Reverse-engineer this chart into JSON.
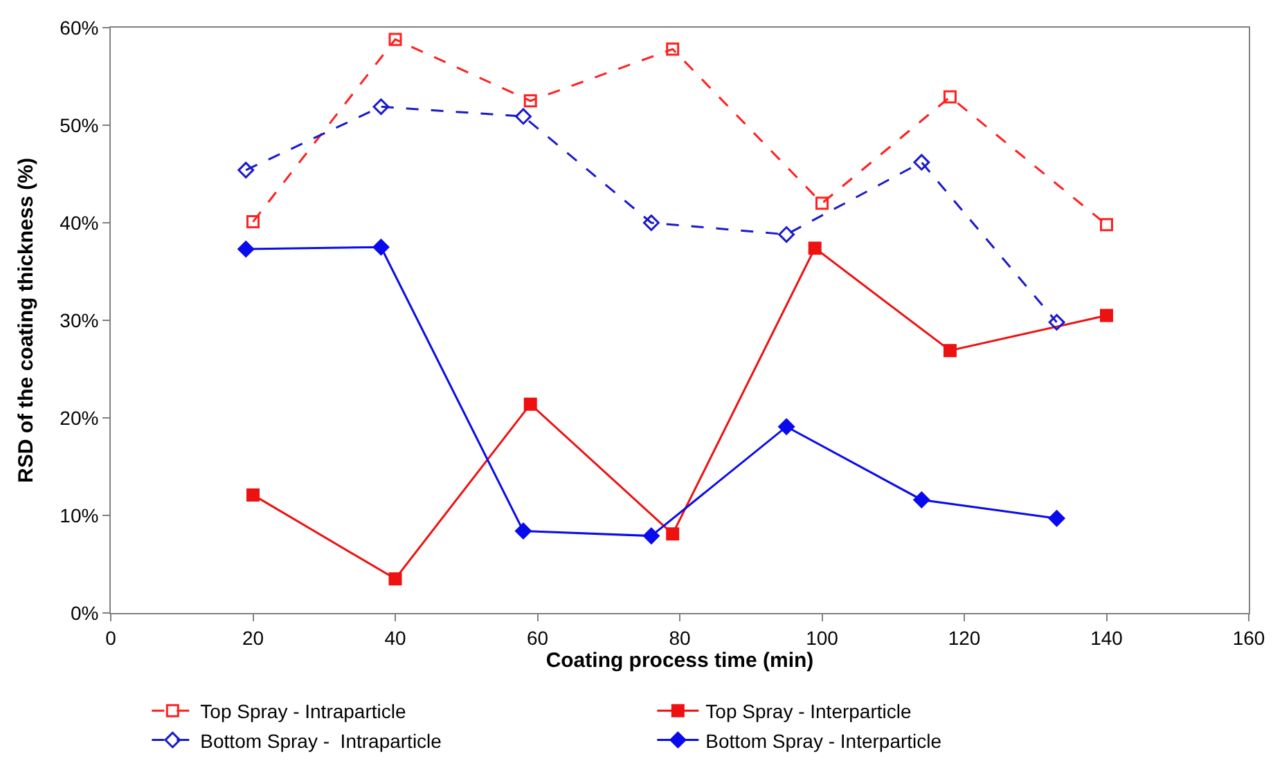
{
  "chart_data": {
    "type": "line",
    "xlabel": "Coating process time (min)",
    "ylabel": "RSD of the coating thickness (%)",
    "xlim": [
      0,
      160
    ],
    "xticks": [
      0,
      20,
      40,
      60,
      80,
      100,
      120,
      140,
      160
    ],
    "ylim": [
      0,
      60
    ],
    "yticks": [
      {
        "value": 0,
        "label": "0%"
      },
      {
        "value": 10,
        "label": "10%"
      },
      {
        "value": 20,
        "label": "20%"
      },
      {
        "value": 30,
        "label": "30%"
      },
      {
        "value": 40,
        "label": "40%"
      },
      {
        "value": 50,
        "label": "50%"
      },
      {
        "value": 60,
        "label": "60%"
      }
    ],
    "legend": "bottom",
    "series": [
      {
        "name": "Top Spray - Intraparticle",
        "color": "#ff2020",
        "marker": "square-open",
        "line_style": "dashed",
        "x": [
          20,
          40,
          59,
          79,
          100,
          118,
          140
        ],
        "values": [
          40.1,
          58.8,
          52.5,
          57.8,
          42.0,
          52.9,
          39.8
        ]
      },
      {
        "name": "Top Spray - Interparticle",
        "color": "#ee1111",
        "marker": "square",
        "line_style": "solid",
        "x": [
          20,
          40,
          59,
          79,
          99,
          118,
          140
        ],
        "values": [
          12.1,
          3.5,
          21.4,
          8.1,
          37.4,
          26.9,
          30.5
        ]
      },
      {
        "name": "Bottom Spray -  Intraparticle",
        "color": "#1a1acc",
        "marker": "diamond-open",
        "line_style": "dashed",
        "x": [
          19,
          38,
          58,
          76,
          95,
          114,
          133
        ],
        "values": [
          45.4,
          51.9,
          50.9,
          40.0,
          38.8,
          46.2,
          29.8
        ]
      },
      {
        "name": "Bottom Spray - Interparticle",
        "color": "#0a0aee",
        "marker": "diamond",
        "line_style": "solid",
        "x": [
          19,
          38,
          58,
          76,
          95,
          114,
          133
        ],
        "values": [
          37.3,
          37.5,
          8.4,
          7.9,
          19.1,
          11.6,
          9.7
        ]
      }
    ]
  }
}
